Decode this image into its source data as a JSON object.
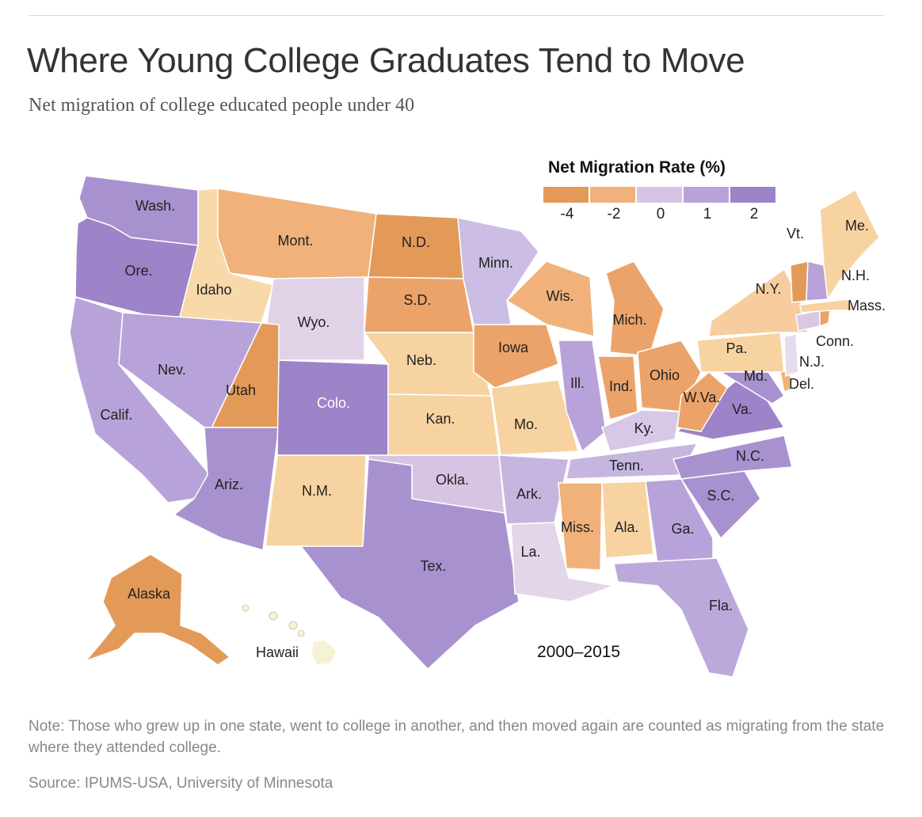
{
  "title": "Where Young College Graduates Tend to Move",
  "subtitle": "Net migration of college educated people under 40",
  "period": "2000–2015",
  "legend": {
    "title": "Net Migration Rate (%)",
    "bins": [
      {
        "color": "#e39a59"
      },
      {
        "color": "#f0b27a"
      },
      {
        "color": "#f7d3a1"
      },
      {
        "color": "#d7c4e2"
      },
      {
        "color": "#b7a3d9"
      },
      {
        "color": "#9d83c8"
      }
    ],
    "ticks": [
      "-4",
      "-2",
      "0",
      "1",
      "2"
    ]
  },
  "note": "Note: Those who grew up in one state, went to college in another, and then moved again are counted as migrating from the state where they attended college.",
  "source": "Source: IPUMS-USA, University of Minnesota",
  "states": [
    {
      "id": "wa",
      "label": "Wash.",
      "color": "#a792cf"
    },
    {
      "id": "or",
      "label": "Ore.",
      "color": "#9d83c8"
    },
    {
      "id": "ca",
      "label": "Calif.",
      "color": "#b7a3d9"
    },
    {
      "id": "id",
      "label": "Idaho",
      "color": "#f7d9aa"
    },
    {
      "id": "nv",
      "label": "Nev.",
      "color": "#b7a3d9"
    },
    {
      "id": "mt",
      "label": "Mont.",
      "color": "#f0b27a"
    },
    {
      "id": "wy",
      "label": "Wyo.",
      "color": "#e0d3e8"
    },
    {
      "id": "ut",
      "label": "Utah",
      "color": "#e39a59"
    },
    {
      "id": "az",
      "label": "Ariz.",
      "color": "#a792cf"
    },
    {
      "id": "co",
      "label": "Colo.",
      "color": "#9d83c8"
    },
    {
      "id": "nm",
      "label": "N.M.",
      "color": "#f7d3a1"
    },
    {
      "id": "nd",
      "label": "N.D.",
      "color": "#e39a59"
    },
    {
      "id": "sd",
      "label": "S.D.",
      "color": "#eba36a"
    },
    {
      "id": "ne",
      "label": "Neb.",
      "color": "#f7d3a1"
    },
    {
      "id": "ks",
      "label": "Kan.",
      "color": "#f7d3a1"
    },
    {
      "id": "ok",
      "label": "Okla.",
      "color": "#d7c4e2"
    },
    {
      "id": "tx",
      "label": "Tex.",
      "color": "#a792cf"
    },
    {
      "id": "mn",
      "label": "Minn.",
      "color": "#cbbde4"
    },
    {
      "id": "ia",
      "label": "Iowa",
      "color": "#eba36a"
    },
    {
      "id": "mo",
      "label": "Mo.",
      "color": "#f7d3a1"
    },
    {
      "id": "ar",
      "label": "Ark.",
      "color": "#c6b6df"
    },
    {
      "id": "la",
      "label": "La.",
      "color": "#e2d6e8"
    },
    {
      "id": "wi",
      "label": "Wis.",
      "color": "#f0b27a"
    },
    {
      "id": "il",
      "label": "Ill.",
      "color": "#b7a3d9"
    },
    {
      "id": "mi",
      "label": "Mich.",
      "color": "#eba36a"
    },
    {
      "id": "in",
      "label": "Ind.",
      "color": "#eba36a"
    },
    {
      "id": "oh",
      "label": "Ohio",
      "color": "#eba36a"
    },
    {
      "id": "ky",
      "label": "Ky.",
      "color": "#d7c8e6"
    },
    {
      "id": "tn",
      "label": "Tenn.",
      "color": "#c6b6df"
    },
    {
      "id": "ms",
      "label": "Miss.",
      "color": "#f0b27a"
    },
    {
      "id": "al",
      "label": "Ala.",
      "color": "#f7d3a1"
    },
    {
      "id": "ga",
      "label": "Ga.",
      "color": "#b7a3d9"
    },
    {
      "id": "fl",
      "label": "Fla.",
      "color": "#bca9dc"
    },
    {
      "id": "sc",
      "label": "S.C.",
      "color": "#a792cf"
    },
    {
      "id": "nc",
      "label": "N.C.",
      "color": "#a792cf"
    },
    {
      "id": "va",
      "label": "Va.",
      "color": "#9d83c8"
    },
    {
      "id": "wv",
      "label": "W.Va.",
      "color": "#eba36a"
    },
    {
      "id": "pa",
      "label": "Pa.",
      "color": "#f7d3a1"
    },
    {
      "id": "ny",
      "label": "N.Y.",
      "color": "#f7cda0"
    },
    {
      "id": "md",
      "label": "Md.",
      "color": "#a792cf"
    },
    {
      "id": "de",
      "label": "Del.",
      "color": "#f0b27a"
    },
    {
      "id": "nj",
      "label": "N.J.",
      "color": "#e6dcec"
    },
    {
      "id": "ct",
      "label": "Conn.",
      "color": "#d7c8e6"
    },
    {
      "id": "ri",
      "label": "",
      "color": "#eba36a"
    },
    {
      "id": "ma",
      "label": "Mass.",
      "color": "#f7d3a1"
    },
    {
      "id": "vt",
      "label": "Vt.",
      "color": "#e39a59"
    },
    {
      "id": "nh",
      "label": "N.H.",
      "color": "#b7a3d9"
    },
    {
      "id": "me",
      "label": "Me.",
      "color": "#f7d3a1"
    },
    {
      "id": "ak",
      "label": "Alaska",
      "color": "#e39a59"
    },
    {
      "id": "hi",
      "label": "Hawaii",
      "color": "#f6f2d6"
    }
  ]
}
